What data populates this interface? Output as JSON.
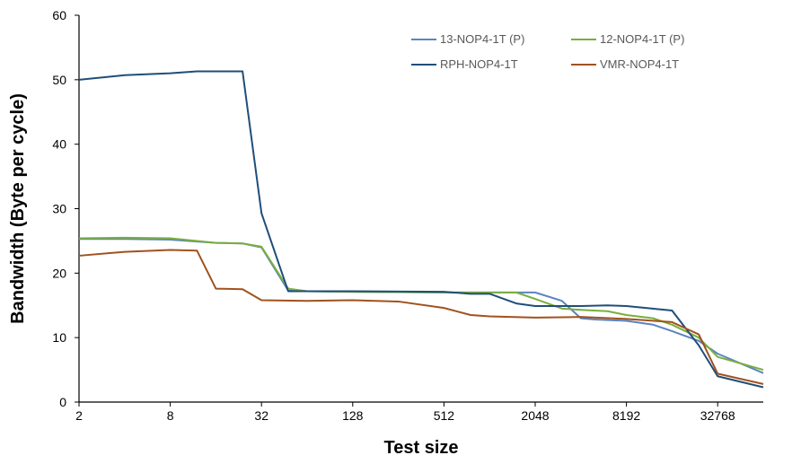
{
  "chart_data": {
    "type": "line",
    "title": "",
    "xlabel": "Test size",
    "ylabel": "Bandwidth (Byte per cycle)",
    "x_scale": "log2",
    "xlim": [
      2,
      65536
    ],
    "ylim": [
      0,
      60
    ],
    "x_ticks": [
      2,
      8,
      32,
      128,
      512,
      2048,
      8192,
      32768
    ],
    "y_ticks": [
      0,
      10,
      20,
      30,
      40,
      50,
      60
    ],
    "grid": false,
    "legend_position": "top-right",
    "series": [
      {
        "name": "13-NOP4-1T (P)",
        "color": "#5B84C0",
        "points": [
          [
            2,
            25.3
          ],
          [
            4,
            25.3
          ],
          [
            8,
            25.2
          ],
          [
            16,
            24.7
          ],
          [
            24,
            24.6
          ],
          [
            32,
            24.0
          ],
          [
            48,
            17.3
          ],
          [
            64,
            17.2
          ],
          [
            128,
            17.1
          ],
          [
            512,
            17.0
          ],
          [
            1024,
            17.0
          ],
          [
            2048,
            17.0
          ],
          [
            3072,
            15.7
          ],
          [
            4096,
            13.0
          ],
          [
            5120,
            12.8
          ],
          [
            8192,
            12.6
          ],
          [
            12288,
            12.0
          ],
          [
            16384,
            11.0
          ],
          [
            24576,
            9.5
          ],
          [
            32768,
            7.5
          ],
          [
            65536,
            4.5
          ]
        ]
      },
      {
        "name": "12-NOP4-1T (P)",
        "color": "#7AAE3D",
        "points": [
          [
            2,
            25.4
          ],
          [
            4,
            25.5
          ],
          [
            8,
            25.4
          ],
          [
            16,
            24.7
          ],
          [
            24,
            24.6
          ],
          [
            32,
            24.1
          ],
          [
            48,
            17.6
          ],
          [
            64,
            17.2
          ],
          [
            128,
            17.1
          ],
          [
            512,
            17.0
          ],
          [
            1024,
            17.0
          ],
          [
            1536,
            17.0
          ],
          [
            2048,
            16.0
          ],
          [
            3072,
            14.5
          ],
          [
            4096,
            14.3
          ],
          [
            6144,
            14.1
          ],
          [
            8192,
            13.5
          ],
          [
            12288,
            13.0
          ],
          [
            16384,
            12.0
          ],
          [
            24576,
            10.0
          ],
          [
            32768,
            7.0
          ],
          [
            65536,
            5.0
          ]
        ]
      },
      {
        "name": "RPH-NOP4-1T",
        "color": "#1F4E79",
        "points": [
          [
            2,
            50.0
          ],
          [
            4,
            50.7
          ],
          [
            8,
            51.0
          ],
          [
            12,
            51.3
          ],
          [
            16,
            51.3
          ],
          [
            24,
            51.3
          ],
          [
            32,
            29.3
          ],
          [
            48,
            17.2
          ],
          [
            64,
            17.2
          ],
          [
            128,
            17.2
          ],
          [
            512,
            17.1
          ],
          [
            768,
            16.8
          ],
          [
            1024,
            16.8
          ],
          [
            1536,
            15.3
          ],
          [
            2048,
            14.9
          ],
          [
            3072,
            14.9
          ],
          [
            4096,
            14.9
          ],
          [
            6144,
            15.0
          ],
          [
            8192,
            14.9
          ],
          [
            16384,
            14.2
          ],
          [
            24576,
            8.8
          ],
          [
            32768,
            4.0
          ],
          [
            65536,
            2.3
          ]
        ]
      },
      {
        "name": "VMR-NOP4-1T",
        "color": "#A0521E",
        "points": [
          [
            2,
            22.7
          ],
          [
            4,
            23.3
          ],
          [
            8,
            23.6
          ],
          [
            12,
            23.5
          ],
          [
            16,
            17.6
          ],
          [
            24,
            17.5
          ],
          [
            32,
            15.8
          ],
          [
            64,
            15.7
          ],
          [
            128,
            15.8
          ],
          [
            256,
            15.6
          ],
          [
            512,
            14.6
          ],
          [
            768,
            13.5
          ],
          [
            1024,
            13.3
          ],
          [
            2048,
            13.1
          ],
          [
            4096,
            13.2
          ],
          [
            8192,
            12.9
          ],
          [
            16384,
            12.4
          ],
          [
            24576,
            10.5
          ],
          [
            32768,
            4.4
          ],
          [
            65536,
            2.8
          ]
        ]
      }
    ]
  }
}
